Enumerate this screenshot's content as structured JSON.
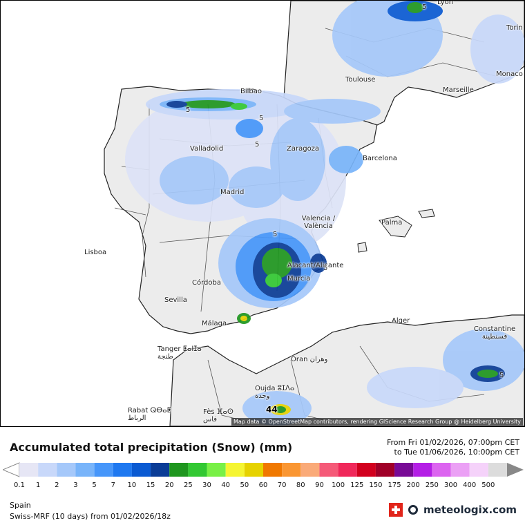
{
  "map": {
    "attribution": "Map data © OpenStreetMap contributors, rendering GIScience Research Group @ Heidelberg University",
    "max_value_label": "44",
    "contour_labels": [
      "5",
      "5",
      "5",
      "5",
      "5",
      "5",
      "5"
    ],
    "cities": [
      {
        "key": "lyon",
        "label": "Lyon"
      },
      {
        "key": "torino",
        "label": "Torin"
      },
      {
        "key": "bilbao",
        "label": "Bilbao"
      },
      {
        "key": "toulouse",
        "label": "Toulouse"
      },
      {
        "key": "marseille",
        "label": "Marseille"
      },
      {
        "key": "monaco",
        "label": "Monaco"
      },
      {
        "key": "valladolid",
        "label": "Valladolid"
      },
      {
        "key": "zaragoza",
        "label": "Zaragoza"
      },
      {
        "key": "barcelona",
        "label": "Barcelona"
      },
      {
        "key": "madrid",
        "label": "Madrid"
      },
      {
        "key": "valencia",
        "label": "Valencia / València"
      },
      {
        "key": "palma",
        "label": "Palma"
      },
      {
        "key": "lisboa",
        "label": "Lisboa"
      },
      {
        "key": "alacant",
        "label": "Alacant/Alicante"
      },
      {
        "key": "murcia",
        "label": "Murcia"
      },
      {
        "key": "cordoba",
        "label": "Córdoba"
      },
      {
        "key": "sevilla",
        "label": "Sevilla"
      },
      {
        "key": "malaga",
        "label": "Málaga"
      },
      {
        "key": "alger",
        "label": "Alger"
      },
      {
        "key": "constantine",
        "label": "Constantine قسنطينة"
      },
      {
        "key": "tanger",
        "label": "Tanger ⵟⴰⵏⵊⴰ طنجة"
      },
      {
        "key": "oran",
        "label": "Oran وهران"
      },
      {
        "key": "oujda",
        "label": "Oujda ⵓⵊⴷⴰ وجدة"
      },
      {
        "key": "rabat",
        "label": "Rabat ⵕⴱⴰⵟ الرباط"
      },
      {
        "key": "fes",
        "label": "Fès ⴼⴰⵙ فاس"
      }
    ]
  },
  "legend": {
    "title": "Accumulated total precipitation (Snow) (mm)",
    "from": "From Fri 01/02/2026, 07:00pm CET",
    "to": "to Tue 01/06/2026, 10:00pm CET",
    "steps": [
      {
        "label": "0.1",
        "color": "#e6e6f5"
      },
      {
        "label": "1",
        "color": "#c8d8fa"
      },
      {
        "label": "2",
        "color": "#a5c8fa"
      },
      {
        "label": "3",
        "color": "#78b4fa"
      },
      {
        "label": "5",
        "color": "#4696fa"
      },
      {
        "label": "7",
        "color": "#1e78f0"
      },
      {
        "label": "10",
        "color": "#0a5ad2"
      },
      {
        "label": "15",
        "color": "#0a3c96"
      },
      {
        "label": "20",
        "color": "#1e961e"
      },
      {
        "label": "25",
        "color": "#32c832"
      },
      {
        "label": "30",
        "color": "#78f046"
      },
      {
        "label": "40",
        "color": "#f5f532"
      },
      {
        "label": "50",
        "color": "#e6d200"
      },
      {
        "label": "60",
        "color": "#f07800"
      },
      {
        "label": "70",
        "color": "#fa9632"
      },
      {
        "label": "80",
        "color": "#faaa78"
      },
      {
        "label": "90",
        "color": "#f55a78"
      },
      {
        "label": "100",
        "color": "#f0285a"
      },
      {
        "label": "125",
        "color": "#d2001e"
      },
      {
        "label": "150",
        "color": "#a00028"
      },
      {
        "label": "175",
        "color": "#780a96"
      },
      {
        "label": "200",
        "color": "#b41ee6"
      },
      {
        "label": "250",
        "color": "#dc64f0"
      },
      {
        "label": "300",
        "color": "#eba0f5"
      },
      {
        "label": "400",
        "color": "#f5d2fa"
      },
      {
        "label": "500",
        "color": "#dcdcdc"
      }
    ]
  },
  "footer": {
    "region": "Spain",
    "model": "Swiss-MRF (10 days) from 01/02/2026/18z",
    "brand": "meteologix.com"
  }
}
